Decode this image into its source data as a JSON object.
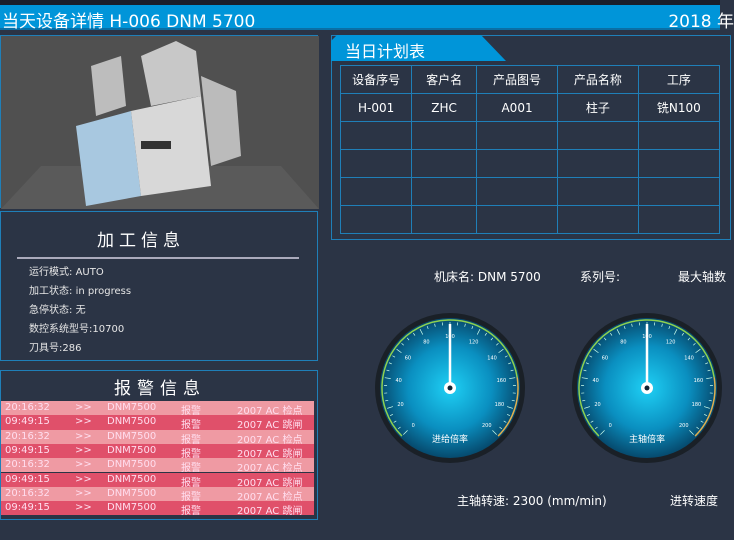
{
  "header": {
    "title": "当天设备详情  H-006   DNM 5700",
    "date": "2018 年"
  },
  "processing": {
    "title": "加工信息",
    "rows": [
      {
        "label": "运行模式:",
        "value": "AUTO"
      },
      {
        "label": "加工状态:",
        "value": "in progress"
      },
      {
        "label": "急停状态:",
        "value": "无"
      },
      {
        "label": "数控系统型号:",
        "value": "10700"
      },
      {
        "label": "刀具号:",
        "value": "286"
      }
    ]
  },
  "alarm": {
    "title": "报警信息",
    "rows": [
      {
        "time": "20:16:32",
        "arrow": ">>",
        "machine": "DNM7500",
        "type": "报警",
        "msg": "2007  AC 检点"
      },
      {
        "time": "09:49:15",
        "arrow": ">>",
        "machine": "DNM7500",
        "type": "报警",
        "msg": "2007  AC 跳闸"
      },
      {
        "time": "20:16:32",
        "arrow": ">>",
        "machine": "DNM7500",
        "type": "报警",
        "msg": "2007  AC 检点"
      },
      {
        "time": "09:49:15",
        "arrow": ">>",
        "machine": "DNM7500",
        "type": "报警",
        "msg": "2007  AC 跳闸"
      },
      {
        "time": "20:16:32",
        "arrow": ">>",
        "machine": "DNM7500",
        "type": "报警",
        "msg": "2007  AC 检点"
      },
      {
        "time": "09:49:15",
        "arrow": ">>",
        "machine": "DNM7500",
        "type": "报警",
        "msg": "2007  AC 跳闸"
      },
      {
        "time": "20:16:32",
        "arrow": ">>",
        "machine": "DNM7500",
        "type": "报警",
        "msg": "2007  AC 检点"
      },
      {
        "time": "09:49:15",
        "arrow": ">>",
        "machine": "DNM7500",
        "type": "报警",
        "msg": "2007  AC 跳闸"
      }
    ],
    "colors": {
      "light": "#ef9aa3",
      "dark": "#e0506a"
    }
  },
  "plan": {
    "title": "当日计划表",
    "columns": [
      "设备序号",
      "客户名",
      "产品图号",
      "产品名称",
      "工序"
    ],
    "rows": [
      [
        "H-001",
        "ZHC",
        "A001",
        "柱子",
        "铣N100"
      ],
      [
        "",
        "",
        "",
        "",
        ""
      ],
      [
        "",
        "",
        "",
        "",
        ""
      ],
      [
        "",
        "",
        "",
        "",
        ""
      ],
      [
        "",
        "",
        "",
        "",
        ""
      ]
    ]
  },
  "machine_info": {
    "name": "机床名: DNM 5700",
    "series": "系列号:",
    "max_axis": "最大轴数"
  },
  "gauges": [
    {
      "label": "进给倍率",
      "value": 100,
      "min": 0,
      "max": 200,
      "ticks": [
        "0",
        "20",
        "40",
        "60",
        "80",
        "100",
        "120",
        "140",
        "160",
        "180",
        "200"
      ]
    },
    {
      "label": "主轴倍率",
      "value": 100,
      "min": 0,
      "max": 200,
      "ticks": [
        "0",
        "20",
        "40",
        "60",
        "80",
        "100",
        "120",
        "140",
        "160",
        "180",
        "200"
      ]
    }
  ],
  "captions": {
    "spindle_speed": "主轴转速: 2300 (mm/min)",
    "feed_speed": "进转速度"
  },
  "machine_model_label": "DNM 5700"
}
